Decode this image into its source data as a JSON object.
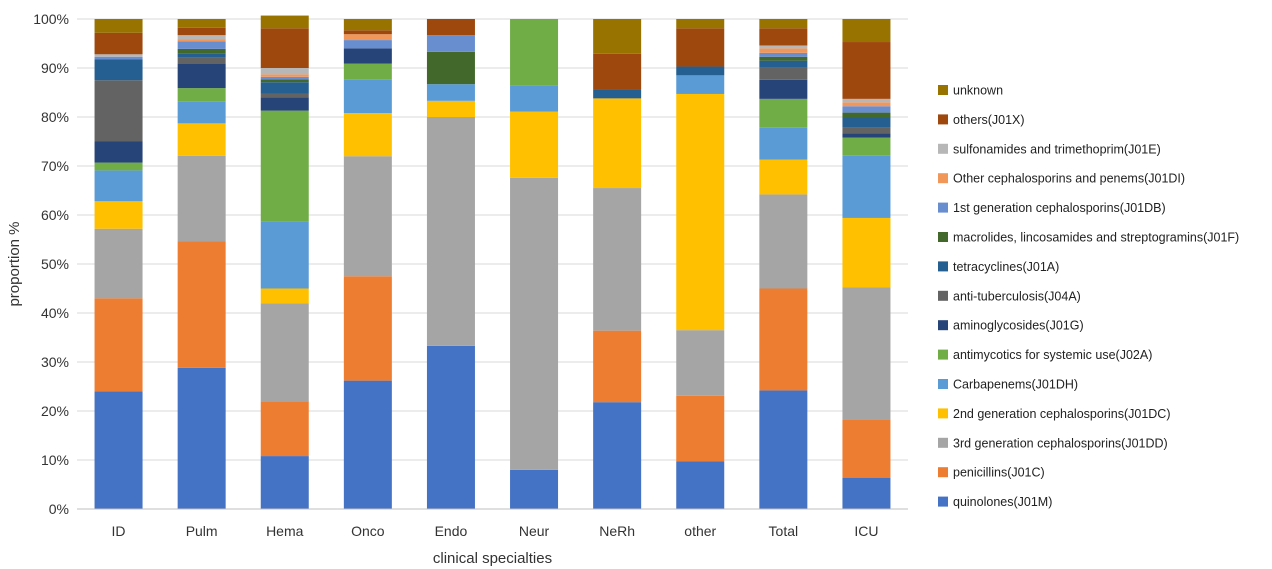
{
  "chart_data": {
    "type": "bar",
    "stacked": true,
    "percent_stacked": true,
    "xlabel": "clinical specialties",
    "ylabel": "proportion %",
    "ylim": [
      0,
      100
    ],
    "yticks": [
      "0%",
      "10%",
      "20%",
      "30%",
      "40%",
      "50%",
      "60%",
      "70%",
      "80%",
      "90%",
      "100%"
    ],
    "grid": true,
    "legend_position": "right",
    "categories": [
      "ID",
      "Pulm",
      "Hema",
      "Onco",
      "Endo",
      "Neur",
      "NeRh",
      "other",
      "Total",
      "ICU"
    ],
    "series": [
      {
        "name": "quinolones(J01M)",
        "color": "#4472C4",
        "values": [
          24,
          28.8,
          10.8,
          26.2,
          33.3,
          8,
          21.8,
          9.7,
          24.2,
          6.4
        ]
      },
      {
        "name": "penicillins(J01C)",
        "color": "#ED7D31",
        "values": [
          19,
          25.8,
          11.2,
          21.3,
          0,
          0,
          14.6,
          13.4,
          20.8,
          11.9
        ]
      },
      {
        "name": "3rd generation cephalosporins(J01DD)",
        "color": "#A5A5A5",
        "values": [
          14.2,
          17.5,
          20,
          24.5,
          46.7,
          59.6,
          29.1,
          13.4,
          19.2,
          26.9
        ]
      },
      {
        "name": "2nd generation cephalosporins(J01DC)",
        "color": "#FFC000",
        "values": [
          5.6,
          6.6,
          3,
          8.8,
          3.3,
          13.5,
          18.3,
          48.2,
          7.1,
          14.2
        ]
      },
      {
        "name": "Carbapenems(J01DH)",
        "color": "#5B9BD5",
        "values": [
          6.3,
          4.4,
          13.7,
          6.9,
          3.4,
          5.3,
          0,
          3.8,
          6.5,
          12.8
        ]
      },
      {
        "name": "antimycotics for systemic use(J02A)",
        "color": "#70AD47",
        "values": [
          1.6,
          2.8,
          22.6,
          3.2,
          0,
          13.6,
          0,
          0,
          5.9,
          3.6
        ]
      },
      {
        "name": "aminoglycosides(J01G)",
        "color": "#264478",
        "values": [
          4.3,
          5,
          2.7,
          3.1,
          0,
          0,
          0,
          0,
          3.9,
          0.9
        ]
      },
      {
        "name": "anti-tuberculosis(J04A)",
        "color": "#636363",
        "values": [
          12.5,
          1.2,
          0.8,
          0,
          0,
          0,
          0,
          0,
          2.6,
          1.1
        ]
      },
      {
        "name": "tetracyclines(J01A)",
        "color": "#255E91",
        "values": [
          4.3,
          0.9,
          2.3,
          0,
          0,
          0,
          1.8,
          1.8,
          1.3,
          2.1
        ]
      },
      {
        "name": "macrolides, lincosamides and streptogramins(J01F)",
        "color": "#43682B",
        "values": [
          0,
          0.9,
          0.6,
          0,
          6.6,
          0,
          0,
          0,
          0.8,
          1
        ]
      },
      {
        "name": "1st generation cephalosporins(J01DB)",
        "color": "#698ED0",
        "values": [
          0.5,
          1.5,
          0.5,
          1.7,
          3.4,
          0,
          0,
          0,
          0.8,
          1.3
        ]
      },
      {
        "name": "Other cephalosporins and penems(J01DI)",
        "color": "#F1975A",
        "values": [
          0,
          0.5,
          0.5,
          1.2,
          0,
          0,
          0,
          0,
          0.9,
          0.8
        ]
      },
      {
        "name": "sulfonamides and trimethoprim(J01E)",
        "color": "#B7B7B7",
        "values": [
          0.5,
          0.8,
          1.3,
          0,
          0,
          0,
          0,
          0,
          0.6,
          0.7
        ]
      },
      {
        "name": "others(J01X)",
        "color": "#9E480E",
        "values": [
          4.4,
          1.5,
          8.1,
          0.8,
          3.3,
          0,
          7.3,
          7.8,
          3.5,
          11.6
        ]
      },
      {
        "name": "unknown",
        "color": "#997300",
        "values": [
          2.8,
          1.8,
          2.6,
          2.3,
          0,
          0,
          7.1,
          1.9,
          1.9,
          4.7
        ]
      }
    ]
  }
}
